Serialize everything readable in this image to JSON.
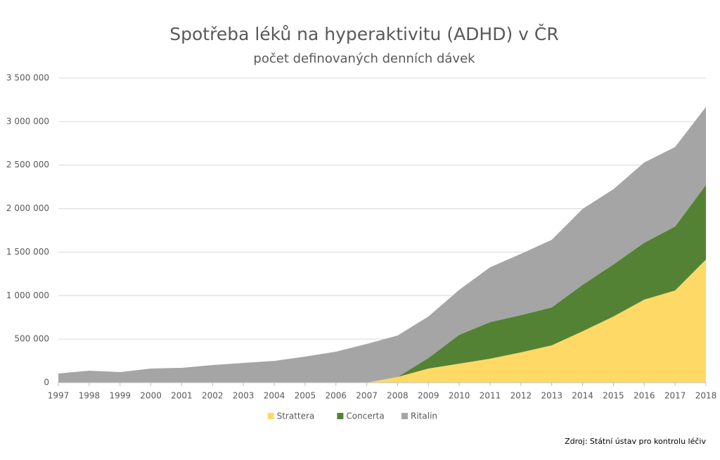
{
  "chart_data": {
    "type": "stacked-area",
    "title": "Spotřeba léků na hyperaktivitu (ADHD) v ČR",
    "subtitle": "počet definovaných denních dávek",
    "source": "Zdroj: Státní ústav pro kontrolu léčiv",
    "categories": [
      "1997",
      "1998",
      "1999",
      "2000",
      "2001",
      "2002",
      "2003",
      "2004",
      "2005",
      "2006",
      "2007",
      "2008",
      "2009",
      "2010",
      "2011",
      "2012",
      "2013",
      "2014",
      "2015",
      "2016",
      "2017",
      "2018"
    ],
    "series": [
      {
        "name": "Strattera",
        "color": "#ffd966",
        "values": [
          0,
          0,
          0,
          0,
          0,
          0,
          0,
          0,
          0,
          0,
          0,
          65000,
          162000,
          218000,
          275000,
          348000,
          428000,
          590000,
          760000,
          954000,
          1059000,
          1415000
        ]
      },
      {
        "name": "Concerta",
        "color": "#548235",
        "values": [
          0,
          0,
          0,
          0,
          0,
          0,
          0,
          0,
          0,
          0,
          0,
          0,
          121000,
          332000,
          420000,
          428000,
          437000,
          534000,
          598000,
          654000,
          735000,
          856000
        ]
      },
      {
        "name": "Ritalin",
        "color": "#a5a5a5",
        "values": [
          105000,
          137000,
          121000,
          162000,
          170000,
          202000,
          226000,
          250000,
          299000,
          356000,
          445000,
          477000,
          477000,
          517000,
          631000,
          704000,
          776000,
          873000,
          865000,
          922000,
          914000,
          898000
        ]
      }
    ],
    "ylim": [
      0,
      3500000
    ],
    "yticks": [
      0,
      {
        "value": 500000,
        "label": "500 000"
      },
      {
        "value": 1000000,
        "label": "1 000 000"
      },
      {
        "value": 1500000,
        "label": "1 500 000"
      },
      {
        "value": 2000000,
        "label": "2 000 000"
      },
      {
        "value": 2500000,
        "label": "2 500 000"
      },
      {
        "value": 3000000,
        "label": "3 000 000"
      },
      {
        "value": 3500000,
        "label": "3 500 000"
      }
    ],
    "grid": true,
    "legend": "bottom"
  }
}
